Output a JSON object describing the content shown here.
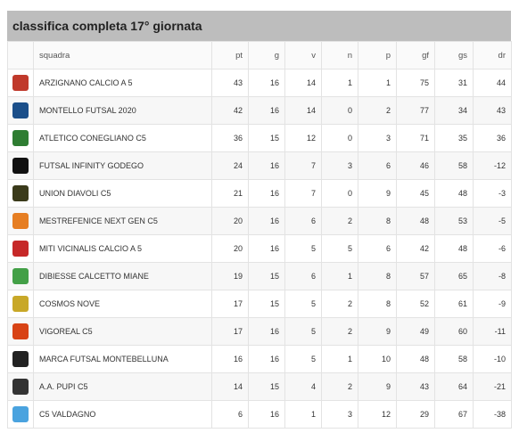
{
  "title": "classifica completa 17° giornata",
  "columns": {
    "team": "squadra",
    "pt": "pt",
    "g": "g",
    "v": "v",
    "n": "n",
    "p": "p",
    "gf": "gf",
    "gs": "gs",
    "dr": "dr"
  },
  "rows": [
    {
      "team": "ARZIGNANO CALCIO A 5",
      "pt": "43",
      "g": "16",
      "v": "14",
      "n": "1",
      "p": "1",
      "gf": "75",
      "gs": "31",
      "dr": "44",
      "logo_icon": "arzignano-crest-icon",
      "logo_color": "#c0392b"
    },
    {
      "team": "MONTELLO FUTSAL 2020",
      "pt": "42",
      "g": "16",
      "v": "14",
      "n": "0",
      "p": "2",
      "gf": "77",
      "gs": "34",
      "dr": "43",
      "logo_icon": "montello-crest-icon",
      "logo_color": "#1b4f8a"
    },
    {
      "team": "ATLETICO CONEGLIANO C5",
      "pt": "36",
      "g": "15",
      "v": "12",
      "n": "0",
      "p": "3",
      "gf": "71",
      "gs": "35",
      "dr": "36",
      "logo_icon": "conegliano-crest-icon",
      "logo_color": "#2e7d32"
    },
    {
      "team": "FUTSAL INFINITY GODEGO",
      "pt": "24",
      "g": "16",
      "v": "7",
      "n": "3",
      "p": "6",
      "gf": "46",
      "gs": "58",
      "dr": "-12",
      "logo_icon": "infinity-godego-crest-icon",
      "logo_color": "#111111"
    },
    {
      "team": "UNION DIAVOLI C5",
      "pt": "21",
      "g": "16",
      "v": "7",
      "n": "0",
      "p": "9",
      "gf": "45",
      "gs": "48",
      "dr": "-3",
      "logo_icon": "diavoli-crest-icon",
      "logo_color": "#3a3a1a"
    },
    {
      "team": "MESTREFENICE NEXT GEN C5",
      "pt": "20",
      "g": "16",
      "v": "6",
      "n": "2",
      "p": "8",
      "gf": "48",
      "gs": "53",
      "dr": "-5",
      "logo_icon": "mestrefenice-crest-icon",
      "logo_color": "#e67e22"
    },
    {
      "team": "MITI VICINALIS CALCIO A 5",
      "pt": "20",
      "g": "16",
      "v": "5",
      "n": "5",
      "p": "6",
      "gf": "42",
      "gs": "48",
      "dr": "-6",
      "logo_icon": "miti-vicinalis-crest-icon",
      "logo_color": "#c62828"
    },
    {
      "team": "DIBIESSE CALCETTO MIANE",
      "pt": "19",
      "g": "15",
      "v": "6",
      "n": "1",
      "p": "8",
      "gf": "57",
      "gs": "65",
      "dr": "-8",
      "logo_icon": "dibiesse-crest-icon",
      "logo_color": "#43a047"
    },
    {
      "team": "COSMOS NOVE",
      "pt": "17",
      "g": "15",
      "v": "5",
      "n": "2",
      "p": "8",
      "gf": "52",
      "gs": "61",
      "dr": "-9",
      "logo_icon": "cosmos-nove-crest-icon",
      "logo_color": "#c8a828"
    },
    {
      "team": "VIGOREAL C5",
      "pt": "17",
      "g": "16",
      "v": "5",
      "n": "2",
      "p": "9",
      "gf": "49",
      "gs": "60",
      "dr": "-11",
      "logo_icon": "vigoreal-crest-icon",
      "logo_color": "#d84315"
    },
    {
      "team": "MARCA FUTSAL MONTEBELLUNA",
      "pt": "16",
      "g": "16",
      "v": "5",
      "n": "1",
      "p": "10",
      "gf": "48",
      "gs": "58",
      "dr": "-10",
      "logo_icon": "marca-futsal-crest-icon",
      "logo_color": "#222222"
    },
    {
      "team": "A.A. PUPI C5",
      "pt": "14",
      "g": "15",
      "v": "4",
      "n": "2",
      "p": "9",
      "gf": "43",
      "gs": "64",
      "dr": "-21",
      "logo_icon": "pupi-crest-icon",
      "logo_color": "#333333"
    },
    {
      "team": "C5 VALDAGNO",
      "pt": "6",
      "g": "16",
      "v": "1",
      "n": "3",
      "p": "12",
      "gf": "29",
      "gs": "67",
      "dr": "-38",
      "logo_icon": "valdagno-crest-icon",
      "logo_color": "#4aa3df"
    }
  ]
}
